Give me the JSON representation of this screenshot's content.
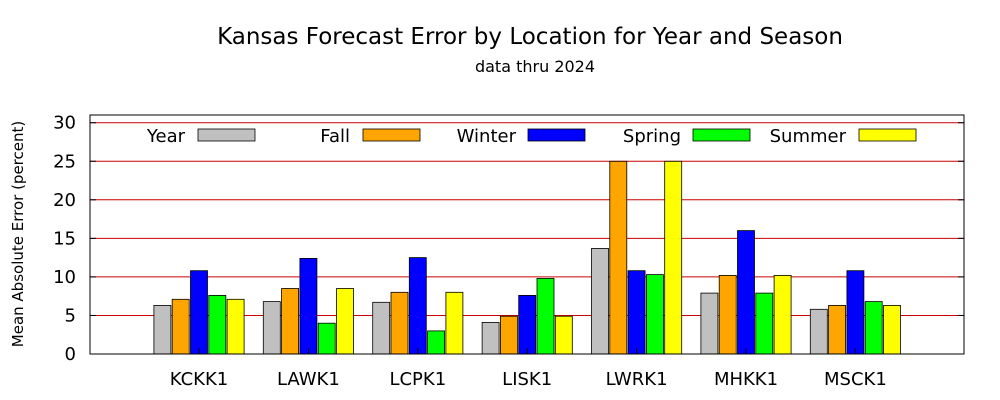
{
  "chart_data": {
    "type": "bar",
    "title": "Kansas Forecast Error by Location for Year and Season",
    "subtitle": "data thru 2024",
    "xlabel": "",
    "ylabel": "Mean Absolute Error (percent)",
    "ylim": [
      0,
      31
    ],
    "yticks": [
      "0",
      "5",
      "10",
      "15",
      "20",
      "25",
      "30"
    ],
    "grid": true,
    "legend_position": "top",
    "categories": [
      "KCKK1",
      "LAWK1",
      "LCPK1",
      "LISK1",
      "LWRK1",
      "MHKK1",
      "MSCK1"
    ],
    "series": [
      {
        "name": "Year",
        "color": "#c0c0c0",
        "values": [
          6.3,
          6.8,
          6.7,
          4.1,
          13.7,
          7.9,
          5.8
        ]
      },
      {
        "name": "Fall",
        "color": "#ffa500",
        "values": [
          7.1,
          8.5,
          8.0,
          4.9,
          25.0,
          10.2,
          6.3
        ]
      },
      {
        "name": "Winter",
        "color": "#0000ff",
        "values": [
          10.8,
          12.4,
          12.5,
          7.6,
          10.8,
          16.0,
          10.8
        ]
      },
      {
        "name": "Spring",
        "color": "#00ff00",
        "values": [
          7.6,
          4.0,
          3.0,
          9.8,
          10.3,
          7.9,
          6.8
        ]
      },
      {
        "name": "Summer",
        "color": "#ffff00",
        "values": [
          7.1,
          8.5,
          8.0,
          4.9,
          25.0,
          10.2,
          6.3
        ]
      }
    ]
  },
  "colors": {
    "gridline": "#cc0000",
    "axis": "#000000"
  }
}
